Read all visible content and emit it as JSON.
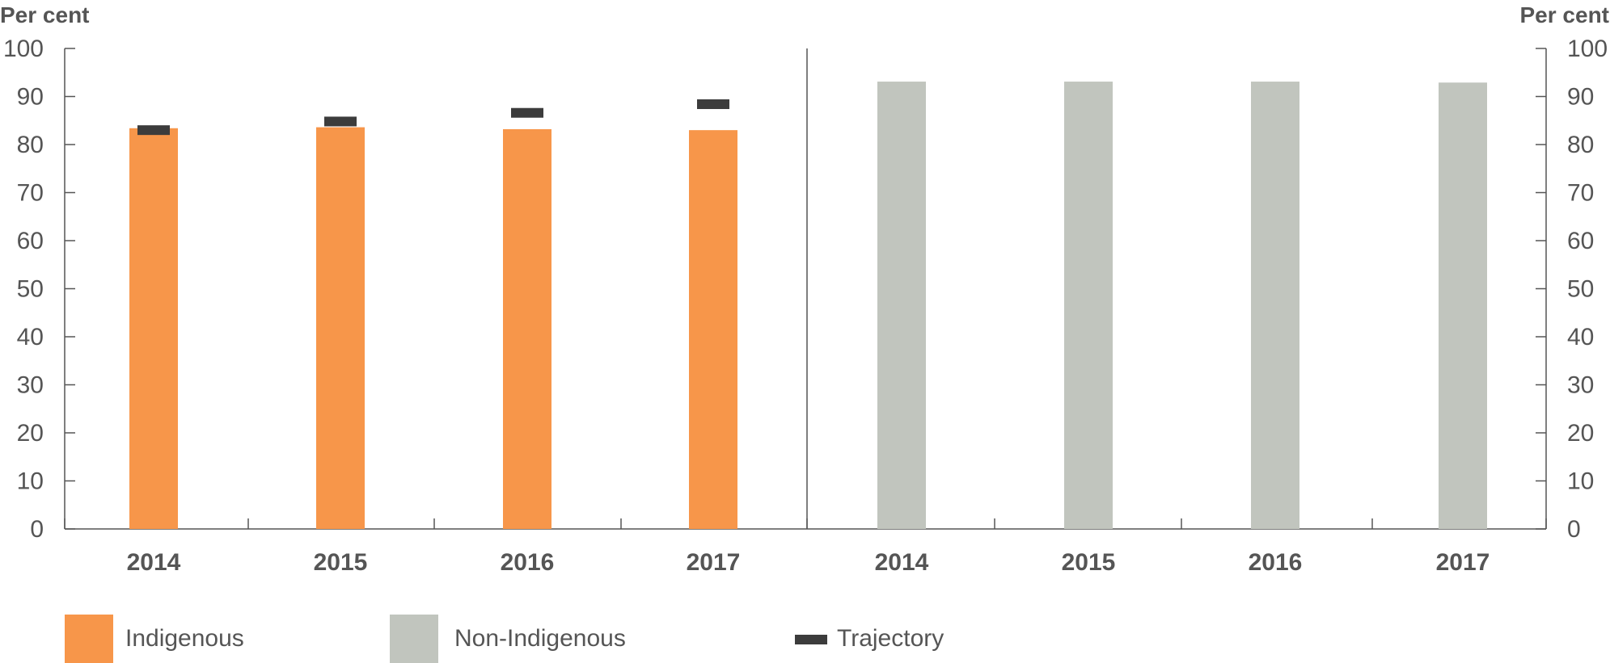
{
  "chart_data": {
    "type": "bar",
    "y_axis_label_left": "Per cent",
    "y_axis_label_right": "Per cent",
    "ylim": [
      0,
      100
    ],
    "yticks": [
      0,
      10,
      20,
      30,
      40,
      50,
      60,
      70,
      80,
      90,
      100
    ],
    "grid": false,
    "legend_position": "bottom-left",
    "panels": [
      {
        "categories": [
          "2014",
          "2015",
          "2016",
          "2017"
        ],
        "series": [
          {
            "name": "Indigenous",
            "color": "#F7964A",
            "values": [
              83.4,
              83.6,
              83.2,
              83.0
            ]
          },
          {
            "name": "Trajectory",
            "color": "#3C3C3C",
            "marker": "dash",
            "values": [
              83.0,
              84.8,
              86.6,
              88.4
            ]
          }
        ]
      },
      {
        "categories": [
          "2014",
          "2015",
          "2016",
          "2017"
        ],
        "series": [
          {
            "name": "Non-Indigenous",
            "color": "#C1C5BE",
            "values": [
              93.1,
              93.1,
              93.1,
              92.9
            ]
          }
        ]
      }
    ],
    "legend": [
      {
        "label": "Indigenous",
        "color": "#F7964A",
        "shape": "square"
      },
      {
        "label": "Non-Indigenous",
        "color": "#C1C5BE",
        "shape": "square"
      },
      {
        "label": "Trajectory",
        "color": "#3C3C3C",
        "shape": "dash"
      }
    ]
  }
}
